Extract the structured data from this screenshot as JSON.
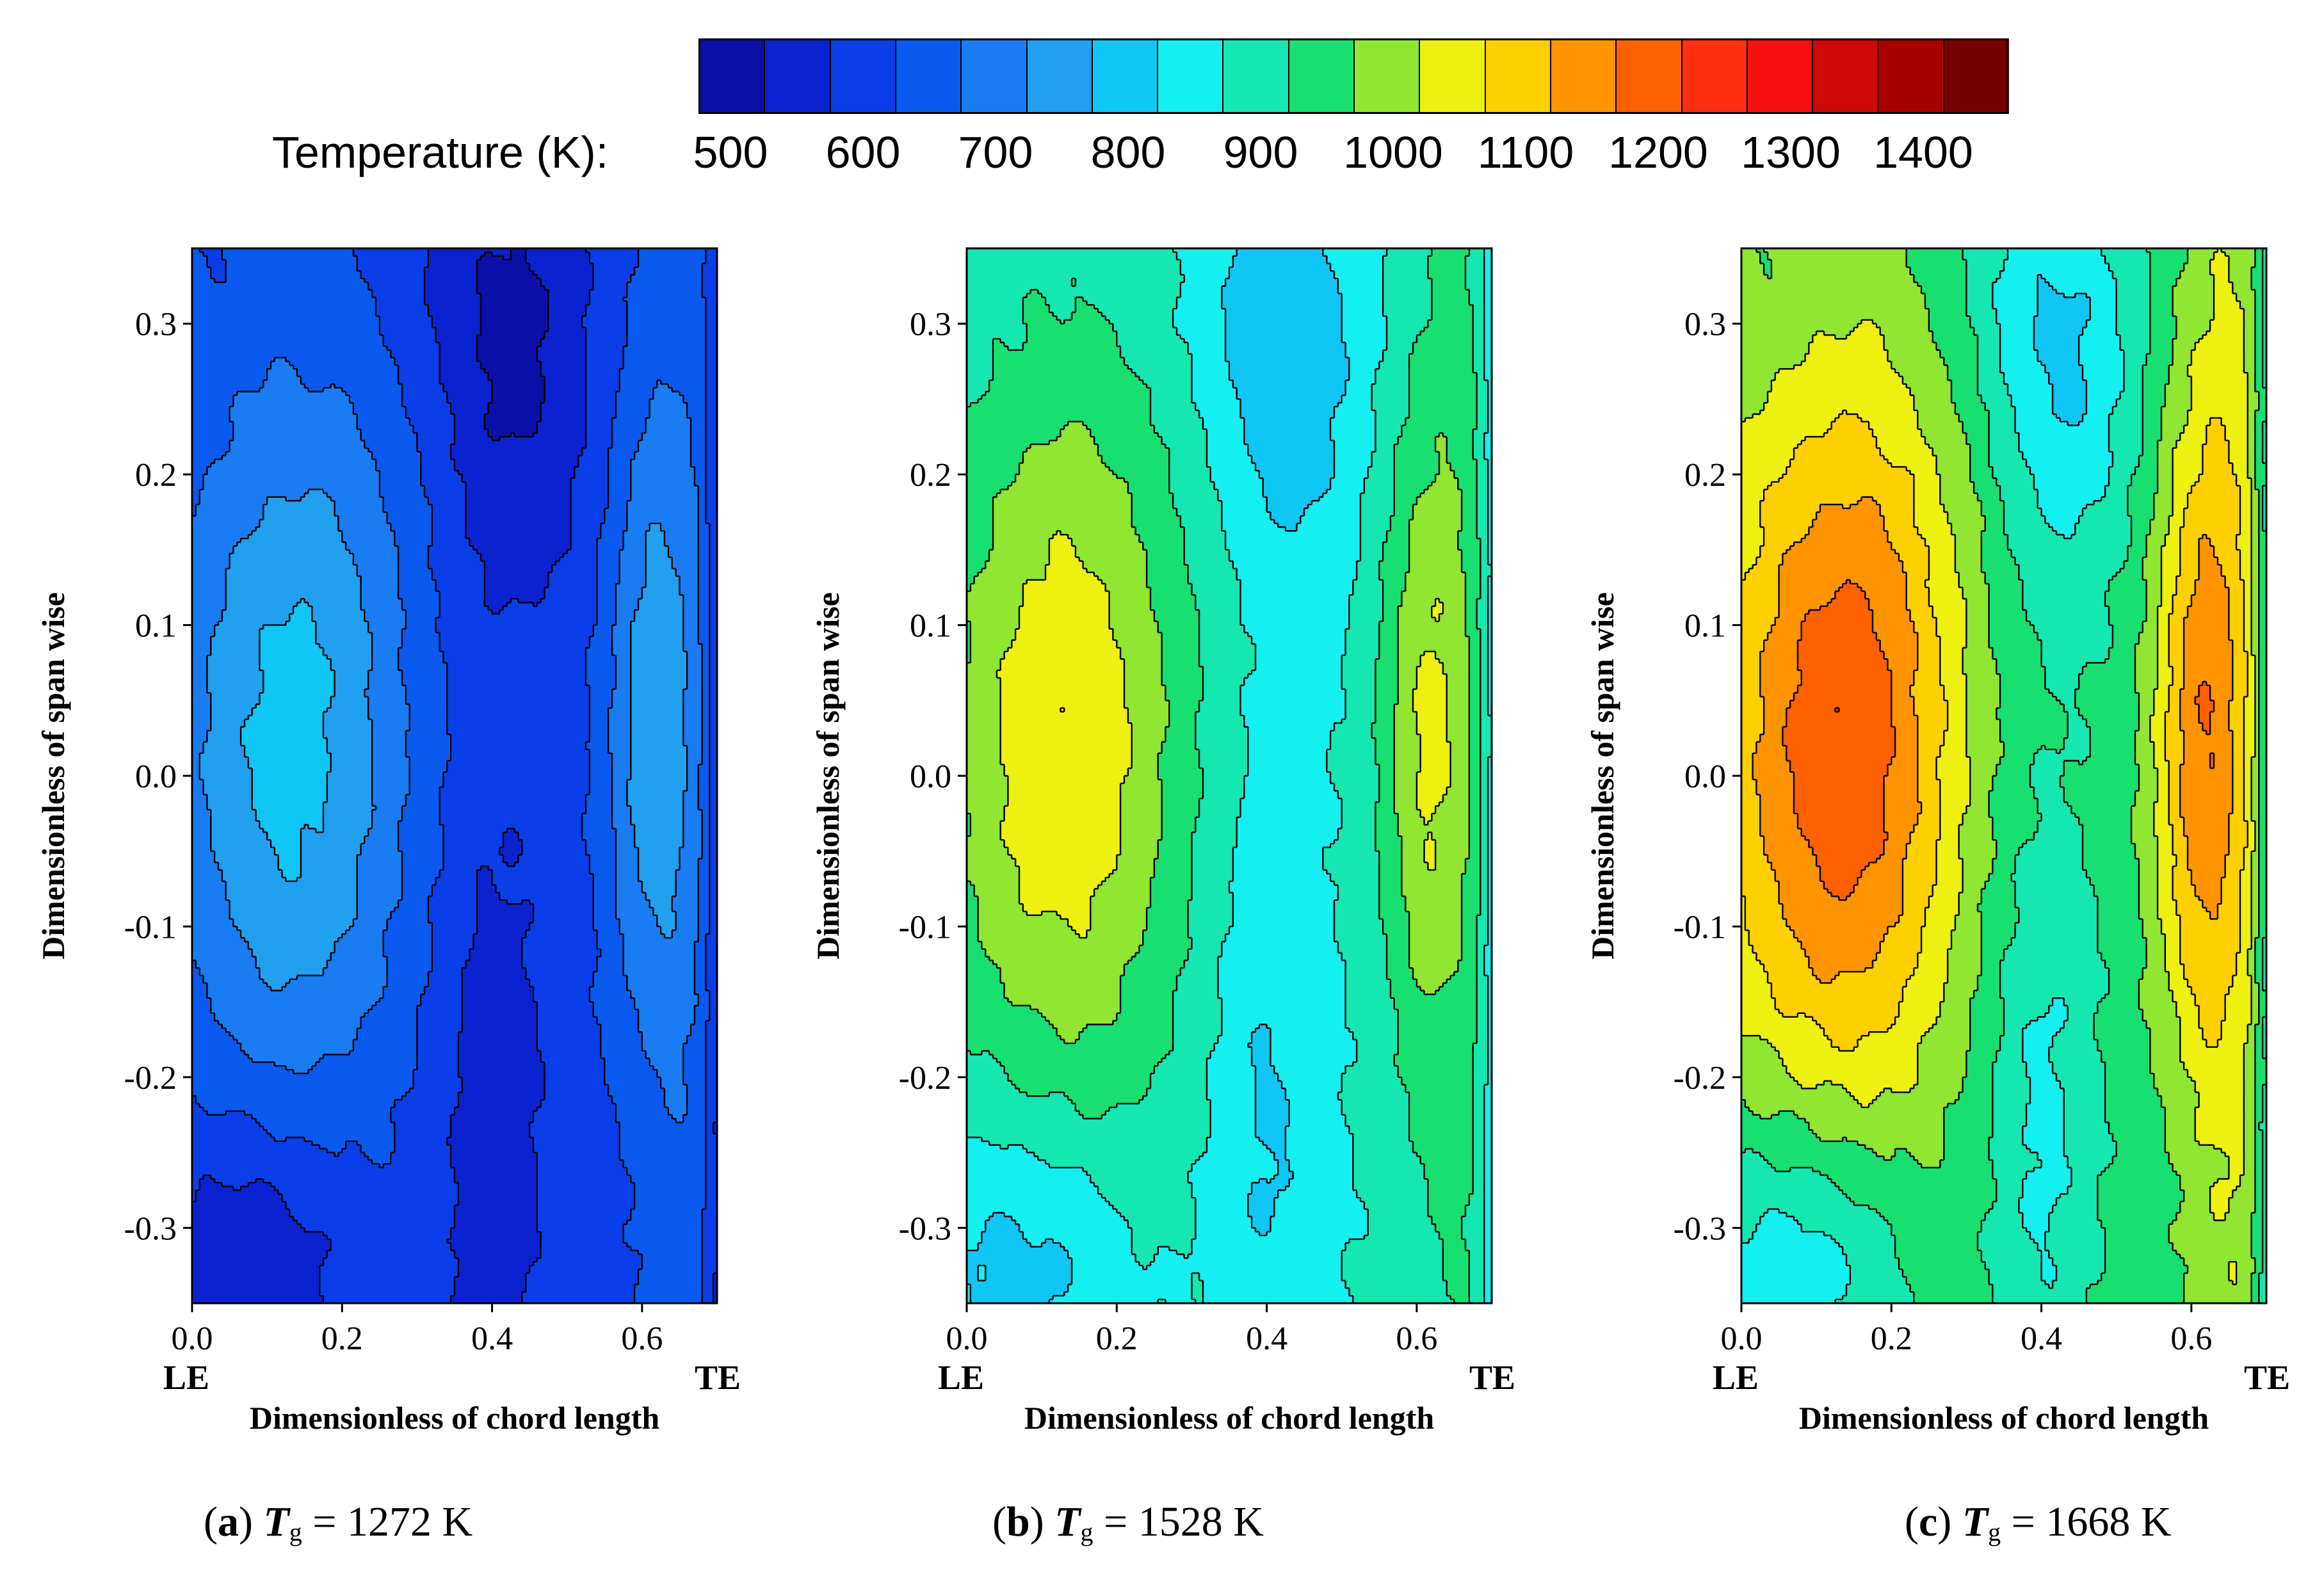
{
  "legend": {
    "title": "Temperature (K):",
    "ticks": [
      "500",
      "600",
      "700",
      "800",
      "900",
      "1000",
      "1100",
      "1200",
      "1300",
      "1400"
    ],
    "colors": [
      "#0a10a8",
      "#0a22d0",
      "#0a3ee8",
      "#0a5af0",
      "#1a7cf2",
      "#22a0f0",
      "#10c6f4",
      "#14f0f0",
      "#14e8b0",
      "#18e070",
      "#90e630",
      "#eef010",
      "#ffd000",
      "#ff9400",
      "#ff6000",
      "#ff3010",
      "#f81010",
      "#d00808",
      "#a80000",
      "#780000"
    ]
  },
  "chart_data": [
    {
      "type": "contour",
      "panel": "a",
      "caption_label": "a",
      "caption_variable": "T",
      "caption_subscript": "g",
      "caption_value": "= 1272 K",
      "xlabel": "Dimensionless of chord length",
      "ylabel": "Dimensionless of span wise",
      "xlim": [
        0.0,
        0.7
      ],
      "ylim": [
        -0.35,
        0.35
      ],
      "xticks": [
        "0.0",
        "0.2",
        "0.4",
        "0.6"
      ],
      "yticks": [
        "0.3",
        "0.2",
        "0.1",
        "0.0",
        "-0.1",
        "-0.2",
        "-0.3"
      ],
      "le_label": "LE",
      "te_label": "TE",
      "temperature_range_K": [
        500,
        800
      ]
    },
    {
      "type": "contour",
      "panel": "b",
      "caption_label": "b",
      "caption_variable": "T",
      "caption_subscript": "g",
      "caption_value": "= 1528 K",
      "xlabel": "Dimensionless of chord length",
      "ylabel": "Dimensionless of span wise",
      "xlim": [
        0.0,
        0.7
      ],
      "ylim": [
        -0.35,
        0.35
      ],
      "xticks": [
        "0.0",
        "0.2",
        "0.4",
        "0.6"
      ],
      "yticks": [
        "0.3",
        "0.2",
        "0.1",
        "0.0",
        "-0.1",
        "-0.2",
        "-0.3"
      ],
      "le_label": "LE",
      "te_label": "TE",
      "temperature_range_K": [
        775,
        1075
      ]
    },
    {
      "type": "contour",
      "panel": "c",
      "caption_label": "c",
      "caption_variable": "T",
      "caption_subscript": "g",
      "caption_value": "= 1668 K",
      "xlabel": "Dimensionless of chord length",
      "ylabel": "Dimensionless of span wise",
      "xlim": [
        0.0,
        0.7
      ],
      "ylim": [
        -0.35,
        0.35
      ],
      "xticks": [
        "0.0",
        "0.2",
        "0.4",
        "0.6"
      ],
      "yticks": [
        "0.3",
        "0.2",
        "0.1",
        "0.0",
        "-0.1",
        "-0.2",
        "-0.3"
      ],
      "le_label": "LE",
      "te_label": "TE",
      "temperature_range_K": [
        800,
        1225
      ]
    }
  ]
}
